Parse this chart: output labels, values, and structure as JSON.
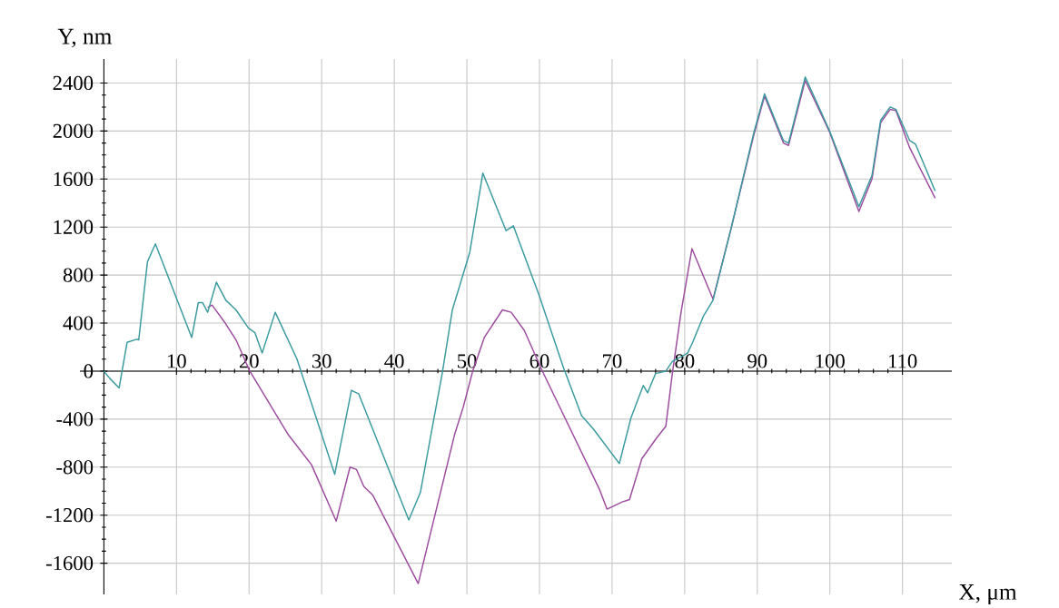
{
  "chart_data": {
    "type": "line",
    "xlabel": "X, μm",
    "ylabel": "Y, nm",
    "xlim": [
      -3.3,
      116.8
    ],
    "ylim": [
      -1860,
      2600
    ],
    "xticks": [
      10,
      20,
      30,
      40,
      50,
      60,
      70,
      80,
      90,
      100,
      110
    ],
    "yticks": [
      -1600,
      -1200,
      -800,
      -400,
      0,
      400,
      800,
      1200,
      1600,
      2000,
      2400
    ],
    "grid": true,
    "line_style": "solid",
    "marker": "none",
    "series": [
      {
        "color": "#9c4c9e",
        "x": [
          14.3,
          14.9,
          16.6,
          18.2,
          20.1,
          25.4,
          28.6,
          32,
          33.9,
          34.8,
          35.8,
          37,
          43.3,
          48.3,
          49.5,
          50.8,
          52.4,
          54.9,
          56.1,
          57.9,
          60.4,
          68.3,
          69.3,
          71.4,
          72.4,
          74.1,
          76.1,
          77.4,
          78.3,
          79.5,
          81,
          83.9,
          86.4,
          89.5,
          91,
          93.6,
          94.3,
          96.6,
          99.9,
          104,
          105.8,
          107,
          108.3,
          109.1,
          111,
          114.5
        ],
        "values": [
          530,
          550,
          410,
          260,
          0,
          -530,
          -780,
          -1250,
          -800,
          -820,
          -960,
          -1030,
          -1770,
          -530,
          -300,
          0,
          280,
          510,
          490,
          340,
          0,
          -990,
          -1150,
          -1090,
          -1070,
          -730,
          -560,
          -460,
          -20,
          490,
          1020,
          600,
          1190,
          1960,
          2290,
          1900,
          1880,
          2420,
          2000,
          1330,
          1600,
          2070,
          2180,
          2170,
          1860,
          1440
        ]
      },
      {
        "color": "#3a9a9e",
        "x": [
          0,
          0.8,
          2.1,
          3.2,
          4.5,
          4.8,
          6,
          7.1,
          12.1,
          13,
          13.6,
          14.3,
          15.5,
          16.8,
          18.2,
          19.9,
          20.8,
          21.8,
          23.6,
          26.6,
          31.8,
          34.1,
          35.1,
          42,
          43.6,
          44.9,
          46.6,
          48,
          50.4,
          52.2,
          55.4,
          56.4,
          59.9,
          63.3,
          65.8,
          67.4,
          71,
          72.6,
          74.3,
          74.9,
          76,
          77.4,
          78.3,
          80.4,
          81.1,
          82.6,
          83.9,
          86.4,
          89.5,
          91,
          93.6,
          94.3,
          96.6,
          99.9,
          104,
          105.8,
          107,
          108.3,
          109.1,
          111,
          111.8,
          114.5
        ],
        "values": [
          0,
          -60,
          -140,
          240,
          265,
          260,
          910,
          1060,
          280,
          570,
          570,
          490,
          740,
          590,
          510,
          360,
          320,
          150,
          490,
          100,
          -860,
          -160,
          -190,
          -1240,
          -1010,
          -580,
          -20,
          510,
          990,
          1650,
          1170,
          1210,
          640,
          30,
          -370,
          -480,
          -770,
          -390,
          -120,
          -180,
          -20,
          0,
          80,
          150,
          240,
          460,
          590,
          1190,
          1980,
          2310,
          1920,
          1900,
          2450,
          2010,
          1370,
          1630,
          2090,
          2200,
          2180,
          1920,
          1890,
          1500
        ]
      }
    ]
  }
}
